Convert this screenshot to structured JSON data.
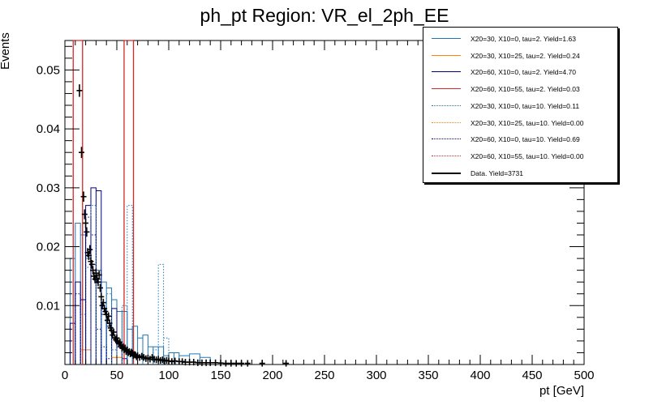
{
  "chart_data": {
    "type": "histogram",
    "title": "ph_pt Region: VR_el_2ph_EE",
    "xlabel": "pt [GeV]",
    "ylabel": "Events",
    "xlim": [
      0,
      500
    ],
    "ylim": [
      0,
      0.055
    ],
    "x_ticks": [
      0,
      50,
      100,
      150,
      200,
      250,
      300,
      350,
      400,
      450,
      500
    ],
    "x_tick_labels": [
      "0",
      "50",
      "100",
      "150",
      "200",
      "250",
      "300",
      "350",
      "400",
      "450",
      "500"
    ],
    "y_ticks": [
      0.01,
      0.02,
      0.03,
      0.04,
      0.05
    ],
    "y_tick_labels": [
      "0.01",
      "0.02",
      "0.03",
      "0.04",
      "0.05"
    ],
    "legend_position": "top-right",
    "series": [
      {
        "name": "X20=30, X10=0, tau=2. Yield=1.63",
        "color": "#1f77b4",
        "style": "solid",
        "bins": [
          [
            5,
            10,
            0.018
          ],
          [
            10,
            15,
            0.024
          ],
          [
            15,
            20,
            0.022
          ],
          [
            20,
            25,
            0.018
          ],
          [
            25,
            30,
            0.017
          ],
          [
            30,
            35,
            0.016
          ],
          [
            35,
            40,
            0.014
          ],
          [
            40,
            45,
            0.013
          ],
          [
            45,
            50,
            0.011
          ],
          [
            50,
            55,
            0.009
          ],
          [
            55,
            60,
            0.009
          ],
          [
            60,
            65,
            0.006
          ],
          [
            65,
            70,
            0.0065
          ],
          [
            70,
            75,
            0.0045
          ],
          [
            75,
            80,
            0.005
          ],
          [
            80,
            85,
            0.003
          ],
          [
            85,
            90,
            0.003
          ],
          [
            90,
            95,
            0.003
          ],
          [
            95,
            100,
            0.0015
          ],
          [
            100,
            105,
            0.002
          ],
          [
            105,
            110,
            0.002
          ],
          [
            110,
            120,
            0.0015
          ],
          [
            120,
            130,
            0.0018
          ],
          [
            130,
            140,
            0.0012
          ]
        ]
      },
      {
        "name": "X20=30, X10=25, tau=2. Yield=0.24",
        "color": "#ff7f0e",
        "style": "solid",
        "bins": [
          [
            15,
            20,
            0.0025
          ],
          [
            20,
            25,
            0.0025
          ],
          [
            45,
            50,
            0.0012
          ],
          [
            50,
            55,
            0.0012
          ]
        ]
      },
      {
        "name": "X20=60, X10=0, tau=2. Yield=4.70",
        "color": "#000080",
        "style": "solid",
        "bins": [
          [
            5,
            10,
            0.007
          ],
          [
            10,
            15,
            0.014
          ],
          [
            15,
            20,
            0.011
          ],
          [
            20,
            25,
            0.027
          ],
          [
            25,
            30,
            0.03
          ],
          [
            30,
            35,
            0.0295
          ],
          [
            35,
            40,
            0.0085
          ],
          [
            40,
            45,
            0.0065
          ],
          [
            45,
            50,
            0.0095
          ],
          [
            50,
            55,
            0.003
          ],
          [
            55,
            60,
            0.001
          ]
        ]
      },
      {
        "name": "X20=60, X10=55, tau=2. Yield=0.03",
        "color": "#d62728",
        "style": "solid",
        "bins": [
          [
            8,
            17,
            0.055
          ],
          [
            57,
            66,
            0.055
          ]
        ]
      },
      {
        "name": "X20=30, X10=0, tau=10. Yield=0.11",
        "color": "#1f77b4",
        "style": "dotted",
        "bins": [
          [
            15,
            20,
            0.0085
          ],
          [
            20,
            25,
            0.0165
          ],
          [
            25,
            30,
            0.027
          ],
          [
            30,
            35,
            0.0145
          ],
          [
            35,
            40,
            0.009
          ],
          [
            40,
            45,
            0.012
          ],
          [
            45,
            50,
            0.0025
          ],
          [
            50,
            55,
            0.003
          ],
          [
            55,
            60,
            0.01
          ],
          [
            60,
            65,
            0.027
          ],
          [
            85,
            90,
            0.0025
          ],
          [
            90,
            95,
            0.017
          ],
          [
            95,
            100,
            0.0045
          ]
        ]
      },
      {
        "name": "X20=30, X10=25, tau=10. Yield=0.00",
        "color": "#ff7f0e",
        "style": "dotted",
        "bins": []
      },
      {
        "name": "X20=60, X10=0, tau=10. Yield=0.69",
        "color": "#000080",
        "style": "dotted",
        "bins": [
          [
            10,
            15,
            0.012
          ],
          [
            15,
            20,
            0.011
          ],
          [
            20,
            25,
            0.025
          ],
          [
            25,
            30,
            0.022
          ],
          [
            30,
            35,
            0.006
          ],
          [
            35,
            40,
            0.003
          ],
          [
            40,
            45,
            0.001
          ]
        ]
      },
      {
        "name": "X20=60, X10=55, tau=10. Yield=0.00",
        "color": "#d62728",
        "style": "dotted",
        "bins": []
      }
    ],
    "data": {
      "name": "Data. Yield=3731",
      "color": "#000000",
      "points": [
        [
          14,
          0.0465
        ],
        [
          16,
          0.036
        ],
        [
          18,
          0.0285
        ],
        [
          19,
          0.0255
        ],
        [
          20,
          0.024
        ],
        [
          21,
          0.0225
        ],
        [
          22,
          0.019
        ],
        [
          23,
          0.0185
        ],
        [
          24,
          0.0195
        ],
        [
          25,
          0.0175
        ],
        [
          26,
          0.017
        ],
        [
          27,
          0.016
        ],
        [
          28,
          0.015
        ],
        [
          29,
          0.0145
        ],
        [
          30,
          0.0155
        ],
        [
          31,
          0.0145
        ],
        [
          32,
          0.014
        ],
        [
          33,
          0.0152
        ],
        [
          34,
          0.013
        ],
        [
          35,
          0.0115
        ],
        [
          36,
          0.01
        ],
        [
          37,
          0.0105
        ],
        [
          38,
          0.0095
        ],
        [
          39,
          0.009
        ],
        [
          40,
          0.0085
        ],
        [
          41,
          0.0075
        ],
        [
          42,
          0.0082
        ],
        [
          43,
          0.007
        ],
        [
          44,
          0.0062
        ],
        [
          45,
          0.0058
        ],
        [
          46,
          0.005
        ],
        [
          47,
          0.0055
        ],
        [
          48,
          0.0045
        ],
        [
          49,
          0.0042
        ],
        [
          50,
          0.0045
        ],
        [
          51,
          0.004
        ],
        [
          52,
          0.0035
        ],
        [
          53,
          0.0038
        ],
        [
          54,
          0.0032
        ],
        [
          55,
          0.0028
        ],
        [
          56,
          0.003
        ],
        [
          57,
          0.0025
        ],
        [
          58,
          0.0028
        ],
        [
          59,
          0.0022
        ],
        [
          60,
          0.0025
        ],
        [
          61,
          0.002
        ],
        [
          62,
          0.0022
        ],
        [
          63,
          0.0018
        ],
        [
          64,
          0.0021
        ],
        [
          65,
          0.0019
        ],
        [
          66,
          0.0015
        ],
        [
          67,
          0.0017
        ],
        [
          68,
          0.0016
        ],
        [
          69,
          0.0013
        ],
        [
          70,
          0.0015
        ],
        [
          72,
          0.0012
        ],
        [
          74,
          0.0014
        ],
        [
          76,
          0.0012
        ],
        [
          78,
          0.001
        ],
        [
          80,
          0.0011
        ],
        [
          82,
          0.0009
        ],
        [
          84,
          0.0012
        ],
        [
          86,
          0.0009
        ],
        [
          88,
          0.0008
        ],
        [
          90,
          0.0009
        ],
        [
          92,
          0.0007
        ],
        [
          94,
          0.0008
        ],
        [
          96,
          0.0006
        ],
        [
          98,
          0.0007
        ],
        [
          100,
          0.0006
        ],
        [
          103,
          0.0005
        ],
        [
          106,
          0.0006
        ],
        [
          110,
          0.0005
        ],
        [
          113,
          0.0005
        ],
        [
          116,
          0.0004
        ],
        [
          120,
          0.0004
        ],
        [
          124,
          0.0004
        ],
        [
          128,
          0.0003
        ],
        [
          132,
          0.0003
        ],
        [
          136,
          0.0003
        ],
        [
          140,
          0.0003
        ],
        [
          145,
          0.0003
        ],
        [
          150,
          0.00025
        ],
        [
          155,
          0.0002
        ],
        [
          160,
          0.0002
        ],
        [
          165,
          0.0002
        ],
        [
          170,
          0.0002
        ],
        [
          176,
          0.0002
        ],
        [
          190,
          0.0002
        ],
        [
          213,
          0.0002
        ]
      ]
    }
  }
}
